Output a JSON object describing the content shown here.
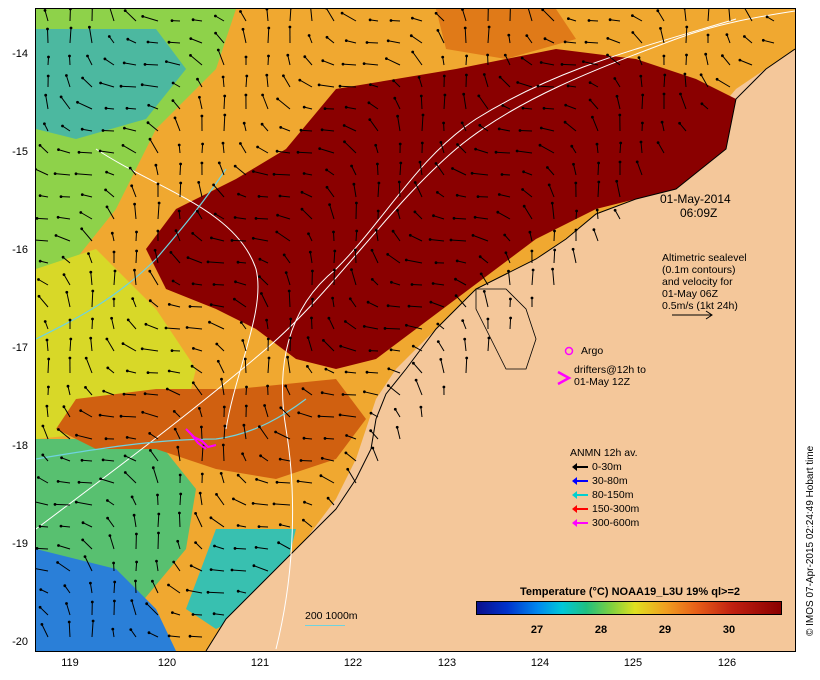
{
  "map": {
    "date_line1": "01-May-2014",
    "date_line2": "06:09Z",
    "altimetry_lines": [
      "Altimetric sealevel",
      "(0.1m contours)",
      "and velocity for",
      "01-May 06Z",
      "0.5m/s (1kt 24h)"
    ],
    "argo_label": "Argo",
    "drifters_line1": "drifters@12h to",
    "drifters_line2": "01-May 12Z",
    "anmn_title": "ANMN 12h av.",
    "anmn_items": [
      {
        "label": "0-30m",
        "color": "#000000"
      },
      {
        "label": "30-80m",
        "color": "#0000ff"
      },
      {
        "label": "80-150m",
        "color": "#00d0d0"
      },
      {
        "label": "150-300m",
        "color": "#ff0000"
      },
      {
        "label": "300-600m",
        "color": "#ff00ff"
      }
    ],
    "scale_label": "200  1000m",
    "colorbar_title": "Temperature (°C) NOAA19_L3U 19% ql>=2",
    "colorbar_ticks": [
      "27",
      "28",
      "29",
      "30"
    ],
    "credit": "© IMOS 07-Apr-2015 02:24:49 Hobart time",
    "lat_labels": [
      "-14",
      "-15",
      "-16",
      "-17",
      "-18",
      "-19",
      "-20"
    ],
    "lon_labels": [
      "119",
      "120",
      "121",
      "122",
      "123",
      "124",
      "125",
      "126"
    ],
    "colors": {
      "land": "#f4c79a",
      "warm": "#8a0000",
      "drifter": "#ff00ff"
    }
  }
}
